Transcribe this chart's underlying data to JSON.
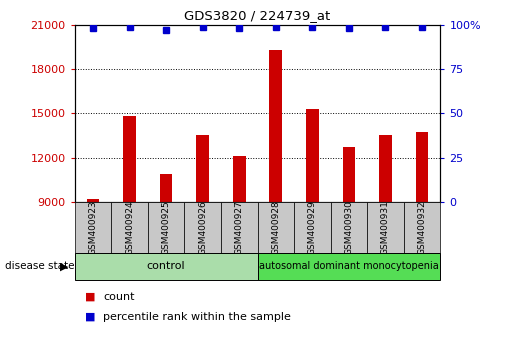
{
  "title": "GDS3820 / 224739_at",
  "samples": [
    "GSM400923",
    "GSM400924",
    "GSM400925",
    "GSM400926",
    "GSM400927",
    "GSM400928",
    "GSM400929",
    "GSM400930",
    "GSM400931",
    "GSM400932"
  ],
  "counts": [
    9200,
    14800,
    10900,
    13500,
    12100,
    19300,
    15300,
    12700,
    13500,
    13700
  ],
  "percentile_ranks": [
    98,
    99,
    97,
    99,
    98,
    99,
    99,
    98,
    99,
    99
  ],
  "bar_color": "#cc0000",
  "dot_color": "#0000cc",
  "ylim_left": [
    9000,
    21000
  ],
  "yticks_left": [
    9000,
    12000,
    15000,
    18000,
    21000
  ],
  "ylim_right": [
    0,
    100
  ],
  "yticks_right": [
    0,
    25,
    50,
    75,
    100
  ],
  "ylabel_left_color": "#cc0000",
  "ylabel_right_color": "#0000cc",
  "grid_color": "#000000",
  "n_control": 5,
  "n_disease": 5,
  "control_label": "control",
  "disease_label": "autosomal dominant monocytopenia",
  "disease_state_label": "disease state",
  "legend_count_label": "count",
  "legend_percentile_label": "percentile rank within the sample",
  "control_color": "#aaddaa",
  "disease_color": "#55dd55",
  "xlabel_area_color": "#c8c8c8",
  "bar_width": 0.35
}
